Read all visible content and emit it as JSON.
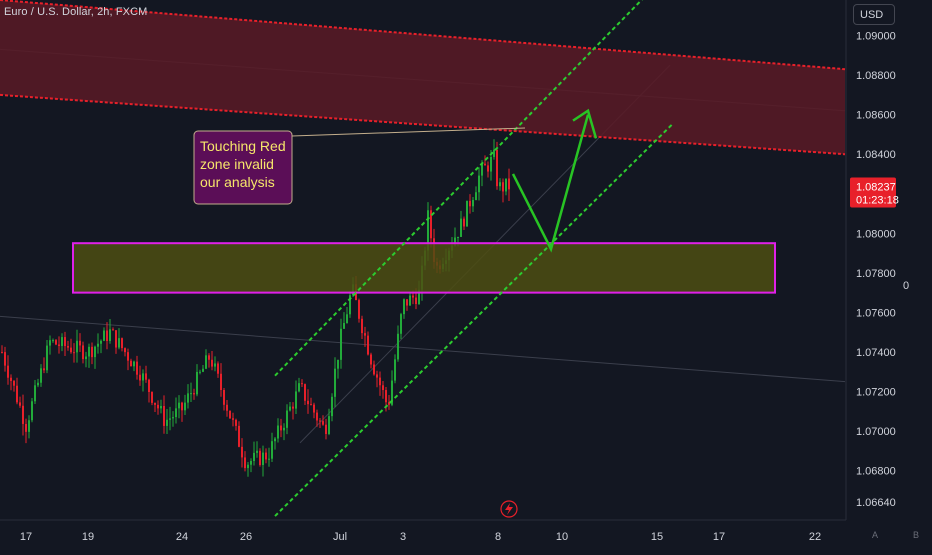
{
  "header": {
    "symbol_title": "Euro / U.S. Dollar, 2h, FXCM",
    "currency_label": "USD"
  },
  "right_panel": {
    "zero_label": "0"
  },
  "bottom_buttons": {
    "auto_label": "A",
    "log_label": "B"
  },
  "colors": {
    "background": "#131722",
    "up_candle": "#22ab3a",
    "down_candle": "#e8202a",
    "channel_line": "#2ccc2f",
    "red_zone_fill": "#5a1a26",
    "red_zone_line": "#e8202a",
    "yellow_zone_fill": "#4d4d12",
    "yellow_zone_border": "#e020e8",
    "projection_arrow": "#28c424",
    "callout_fill": "#5b0e57",
    "callout_border": "#c3ae8c",
    "callout_text": "#f6e66b",
    "price_tag": "#e8202a"
  },
  "annotation": {
    "callout_lines": [
      "Touching Red",
      "zone invalid",
      "our analysis"
    ]
  },
  "chart_data": {
    "type": "candlestick",
    "title": "Euro / U.S. Dollar, 2h, FXCM",
    "x_tick_labels": [
      "17",
      "19",
      "24",
      "26",
      "Jul",
      "3",
      "8",
      "10",
      "15",
      "17",
      "22"
    ],
    "y_tick_labels": [
      "1.09000",
      "1.08800",
      "1.08600",
      "1.08400",
      "1.08000",
      "1.07800",
      "1.07600",
      "1.07400",
      "1.07200",
      "1.07000",
      "1.06800",
      "1.06640"
    ],
    "ylim": [
      1.0655,
      1.0918
    ],
    "last_price": "1.08237",
    "countdown": "01:23:18",
    "key_closes": [
      {
        "x": "17",
        "value": 1.0703
      },
      {
        "x": "19",
        "value": 1.074
      },
      {
        "x": "24",
        "value": 1.0711
      },
      {
        "x": "26",
        "value": 1.0684
      },
      {
        "x": "Jul",
        "value": 1.0745
      },
      {
        "x": "3",
        "value": 1.0764
      },
      {
        "x": "8",
        "value": 1.0823
      }
    ],
    "zones": [
      {
        "kind": "supply",
        "color": "red",
        "upper_start": 1.0918,
        "upper_end": 1.0883,
        "lower_start": 1.087,
        "lower_end": 1.084
      },
      {
        "kind": "demand",
        "color": "yellow",
        "top": 1.0795,
        "bottom": 1.077
      }
    ],
    "channel": {
      "upper_start": 1.0728,
      "upper_end": 1.0925,
      "lower_start": 1.0657,
      "lower_end": 1.0855
    },
    "projection": [
      {
        "x": "8",
        "value": 1.083
      },
      {
        "x": "10",
        "value": 1.0792
      },
      {
        "x": "10",
        "value": 1.086
      }
    ]
  }
}
